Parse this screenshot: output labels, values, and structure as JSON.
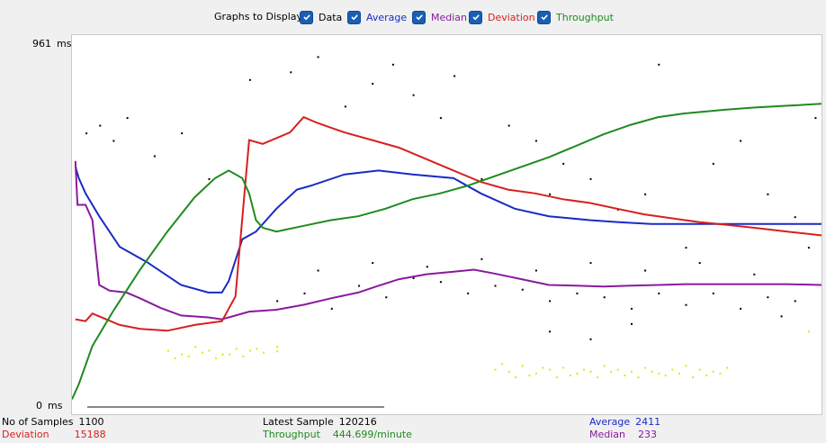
{
  "legend": {
    "title": "Graphs to Display",
    "items": [
      {
        "key": "data",
        "label": "Data",
        "color": "#000000",
        "checked": true
      },
      {
        "key": "average",
        "label": "Average",
        "color": "#1a2bc4",
        "checked": true
      },
      {
        "key": "median",
        "label": "Median",
        "color": "#8a1a9e",
        "checked": true
      },
      {
        "key": "deviation",
        "label": "Deviation",
        "color": "#d62020",
        "checked": true
      },
      {
        "key": "throughput",
        "label": "Throughput",
        "color": "#1f8a1f",
        "checked": true
      }
    ]
  },
  "y_axis": {
    "max_label": "961",
    "min_label": "0",
    "unit": "ms"
  },
  "stats": {
    "samples_label": "No of Samples",
    "samples_value": "1100",
    "latest_label": "Latest Sample",
    "latest_value": "120216",
    "average_label": "Average",
    "average_value": "2411",
    "deviation_label": "Deviation",
    "deviation_value": "15188",
    "throughput_label": "Throughput",
    "throughput_value": "444.699/minute",
    "median_label": "Median",
    "median_value": "233"
  },
  "chart_data": {
    "type": "line",
    "x_range": [
      0,
      1100
    ],
    "y_range": [
      0,
      961
    ],
    "series": [
      {
        "name": "Average",
        "color": "#1a2bc4",
        "points": [
          [
            5,
            630
          ],
          [
            10,
            600
          ],
          [
            20,
            560
          ],
          [
            40,
            500
          ],
          [
            70,
            420
          ],
          [
            110,
            380
          ],
          [
            160,
            320
          ],
          [
            200,
            300
          ],
          [
            220,
            300
          ],
          [
            230,
            330
          ],
          [
            250,
            440
          ],
          [
            270,
            460
          ],
          [
            300,
            520
          ],
          [
            330,
            570
          ],
          [
            350,
            580
          ],
          [
            400,
            610
          ],
          [
            450,
            620
          ],
          [
            500,
            610
          ],
          [
            560,
            600
          ],
          [
            600,
            560
          ],
          [
            650,
            520
          ],
          [
            700,
            500
          ],
          [
            760,
            490
          ],
          [
            800,
            485
          ],
          [
            850,
            480
          ],
          [
            900,
            480
          ],
          [
            960,
            480
          ],
          [
            1000,
            480
          ],
          [
            1050,
            480
          ],
          [
            1100,
            480
          ]
        ]
      },
      {
        "name": "Median",
        "color": "#8a1a9e",
        "points": [
          [
            5,
            645
          ],
          [
            8,
            530
          ],
          [
            20,
            530
          ],
          [
            30,
            490
          ],
          [
            40,
            320
          ],
          [
            55,
            305
          ],
          [
            80,
            300
          ],
          [
            100,
            285
          ],
          [
            130,
            260
          ],
          [
            160,
            240
          ],
          [
            200,
            235
          ],
          [
            220,
            230
          ],
          [
            260,
            250
          ],
          [
            300,
            255
          ],
          [
            340,
            268
          ],
          [
            380,
            285
          ],
          [
            420,
            300
          ],
          [
            450,
            318
          ],
          [
            480,
            335
          ],
          [
            520,
            348
          ],
          [
            560,
            355
          ],
          [
            590,
            360
          ],
          [
            620,
            350
          ],
          [
            660,
            335
          ],
          [
            700,
            320
          ],
          [
            740,
            318
          ],
          [
            780,
            316
          ],
          [
            820,
            318
          ],
          [
            860,
            320
          ],
          [
            900,
            322
          ],
          [
            950,
            322
          ],
          [
            1000,
            322
          ],
          [
            1050,
            322
          ],
          [
            1100,
            320
          ]
        ]
      },
      {
        "name": "Deviation",
        "color": "#d62020",
        "points": [
          [
            5,
            230
          ],
          [
            20,
            225
          ],
          [
            30,
            245
          ],
          [
            50,
            230
          ],
          [
            70,
            215
          ],
          [
            100,
            205
          ],
          [
            140,
            200
          ],
          [
            180,
            215
          ],
          [
            220,
            225
          ],
          [
            240,
            290
          ],
          [
            260,
            700
          ],
          [
            280,
            690
          ],
          [
            320,
            720
          ],
          [
            340,
            760
          ],
          [
            360,
            745
          ],
          [
            400,
            720
          ],
          [
            440,
            700
          ],
          [
            480,
            680
          ],
          [
            520,
            650
          ],
          [
            560,
            620
          ],
          [
            600,
            590
          ],
          [
            640,
            570
          ],
          [
            680,
            560
          ],
          [
            720,
            545
          ],
          [
            760,
            535
          ],
          [
            800,
            520
          ],
          [
            840,
            505
          ],
          [
            880,
            495
          ],
          [
            920,
            485
          ],
          [
            960,
            478
          ],
          [
            1000,
            470
          ],
          [
            1050,
            460
          ],
          [
            1100,
            450
          ]
        ]
      },
      {
        "name": "Throughput",
        "color": "#1f8a1f",
        "points": [
          [
            0,
            20
          ],
          [
            10,
            60
          ],
          [
            30,
            160
          ],
          [
            60,
            250
          ],
          [
            100,
            360
          ],
          [
            140,
            460
          ],
          [
            180,
            550
          ],
          [
            210,
            600
          ],
          [
            230,
            620
          ],
          [
            250,
            600
          ],
          [
            260,
            560
          ],
          [
            270,
            490
          ],
          [
            280,
            470
          ],
          [
            300,
            460
          ],
          [
            340,
            475
          ],
          [
            380,
            490
          ],
          [
            420,
            500
          ],
          [
            460,
            520
          ],
          [
            500,
            545
          ],
          [
            540,
            560
          ],
          [
            580,
            580
          ],
          [
            620,
            605
          ],
          [
            660,
            630
          ],
          [
            700,
            655
          ],
          [
            740,
            685
          ],
          [
            780,
            715
          ],
          [
            820,
            740
          ],
          [
            860,
            760
          ],
          [
            900,
            770
          ],
          [
            960,
            780
          ],
          [
            1000,
            785
          ],
          [
            1050,
            790
          ],
          [
            1100,
            795
          ]
        ]
      }
    ],
    "scatter_black": [
      [
        20,
        720
      ],
      [
        40,
        740
      ],
      [
        60,
        700
      ],
      [
        80,
        760
      ],
      [
        120,
        660
      ],
      [
        160,
        720
      ],
      [
        200,
        600
      ],
      [
        260,
        860
      ],
      [
        320,
        880
      ],
      [
        360,
        920
      ],
      [
        400,
        790
      ],
      [
        440,
        850
      ],
      [
        470,
        900
      ],
      [
        500,
        820
      ],
      [
        540,
        760
      ],
      [
        560,
        870
      ],
      [
        600,
        600
      ],
      [
        640,
        740
      ],
      [
        680,
        700
      ],
      [
        700,
        560
      ],
      [
        720,
        640
      ],
      [
        760,
        600
      ],
      [
        800,
        520
      ],
      [
        840,
        560
      ],
      [
        860,
        900
      ],
      [
        900,
        420
      ],
      [
        940,
        640
      ],
      [
        980,
        700
      ],
      [
        1020,
        560
      ],
      [
        1060,
        500
      ],
      [
        1080,
        420
      ],
      [
        1090,
        760
      ],
      [
        300,
        280
      ],
      [
        340,
        300
      ],
      [
        380,
        260
      ],
      [
        420,
        320
      ],
      [
        460,
        290
      ],
      [
        500,
        340
      ],
      [
        540,
        330
      ],
      [
        580,
        300
      ],
      [
        620,
        320
      ],
      [
        660,
        310
      ],
      [
        700,
        280
      ],
      [
        740,
        300
      ],
      [
        780,
        290
      ],
      [
        820,
        260
      ],
      [
        860,
        300
      ],
      [
        900,
        270
      ],
      [
        940,
        300
      ],
      [
        980,
        260
      ],
      [
        1020,
        290
      ],
      [
        1060,
        280
      ],
      [
        360,
        360
      ],
      [
        440,
        380
      ],
      [
        520,
        370
      ],
      [
        600,
        390
      ],
      [
        680,
        360
      ],
      [
        760,
        380
      ],
      [
        840,
        360
      ],
      [
        920,
        380
      ],
      [
        1000,
        350
      ],
      [
        1040,
        240
      ],
      [
        700,
        200
      ],
      [
        760,
        180
      ],
      [
        820,
        220
      ]
    ],
    "scatter_yellow": [
      [
        140,
        150
      ],
      [
        160,
        140
      ],
      [
        180,
        160
      ],
      [
        200,
        150
      ],
      [
        220,
        140
      ],
      [
        240,
        155
      ],
      [
        260,
        150
      ],
      [
        280,
        145
      ],
      [
        300,
        148
      ],
      [
        300,
        160
      ],
      [
        150,
        130
      ],
      [
        170,
        135
      ],
      [
        190,
        145
      ],
      [
        210,
        130
      ],
      [
        230,
        140
      ],
      [
        250,
        135
      ],
      [
        270,
        155
      ],
      [
        620,
        100
      ],
      [
        640,
        95
      ],
      [
        660,
        110
      ],
      [
        680,
        90
      ],
      [
        700,
        100
      ],
      [
        720,
        105
      ],
      [
        740,
        90
      ],
      [
        760,
        95
      ],
      [
        780,
        110
      ],
      [
        800,
        100
      ],
      [
        820,
        95
      ],
      [
        840,
        105
      ],
      [
        860,
        90
      ],
      [
        880,
        100
      ],
      [
        900,
        110
      ],
      [
        920,
        100
      ],
      [
        940,
        95
      ],
      [
        960,
        105
      ],
      [
        630,
        115
      ],
      [
        650,
        80
      ],
      [
        670,
        85
      ],
      [
        690,
        105
      ],
      [
        710,
        80
      ],
      [
        730,
        85
      ],
      [
        750,
        100
      ],
      [
        770,
        80
      ],
      [
        790,
        95
      ],
      [
        810,
        85
      ],
      [
        830,
        80
      ],
      [
        850,
        95
      ],
      [
        870,
        85
      ],
      [
        890,
        90
      ],
      [
        910,
        80
      ],
      [
        930,
        85
      ],
      [
        950,
        90
      ],
      [
        1080,
        200
      ]
    ]
  }
}
